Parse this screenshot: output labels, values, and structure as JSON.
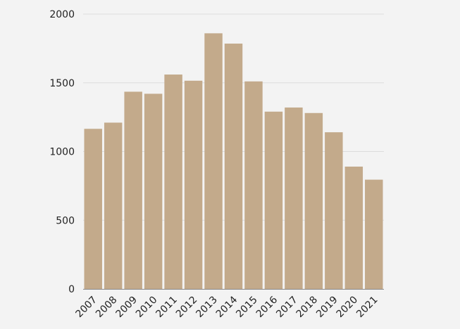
{
  "chart_data": {
    "type": "bar",
    "categories": [
      "2007",
      "2008",
      "2009",
      "2010",
      "2011",
      "2012",
      "2013",
      "2014",
      "2015",
      "2016",
      "2017",
      "2018",
      "2019",
      "2020",
      "2021"
    ],
    "values": [
      1165,
      1210,
      1435,
      1420,
      1560,
      1515,
      1860,
      1785,
      1510,
      1290,
      1320,
      1280,
      1140,
      890,
      795
    ],
    "ylim": [
      0,
      2000
    ],
    "yticks": [
      0,
      500,
      1000,
      1500,
      2000
    ],
    "title": "",
    "xlabel": "",
    "ylabel": "",
    "grid": true,
    "legend": "none",
    "bar_color": "#c3aa8b"
  }
}
